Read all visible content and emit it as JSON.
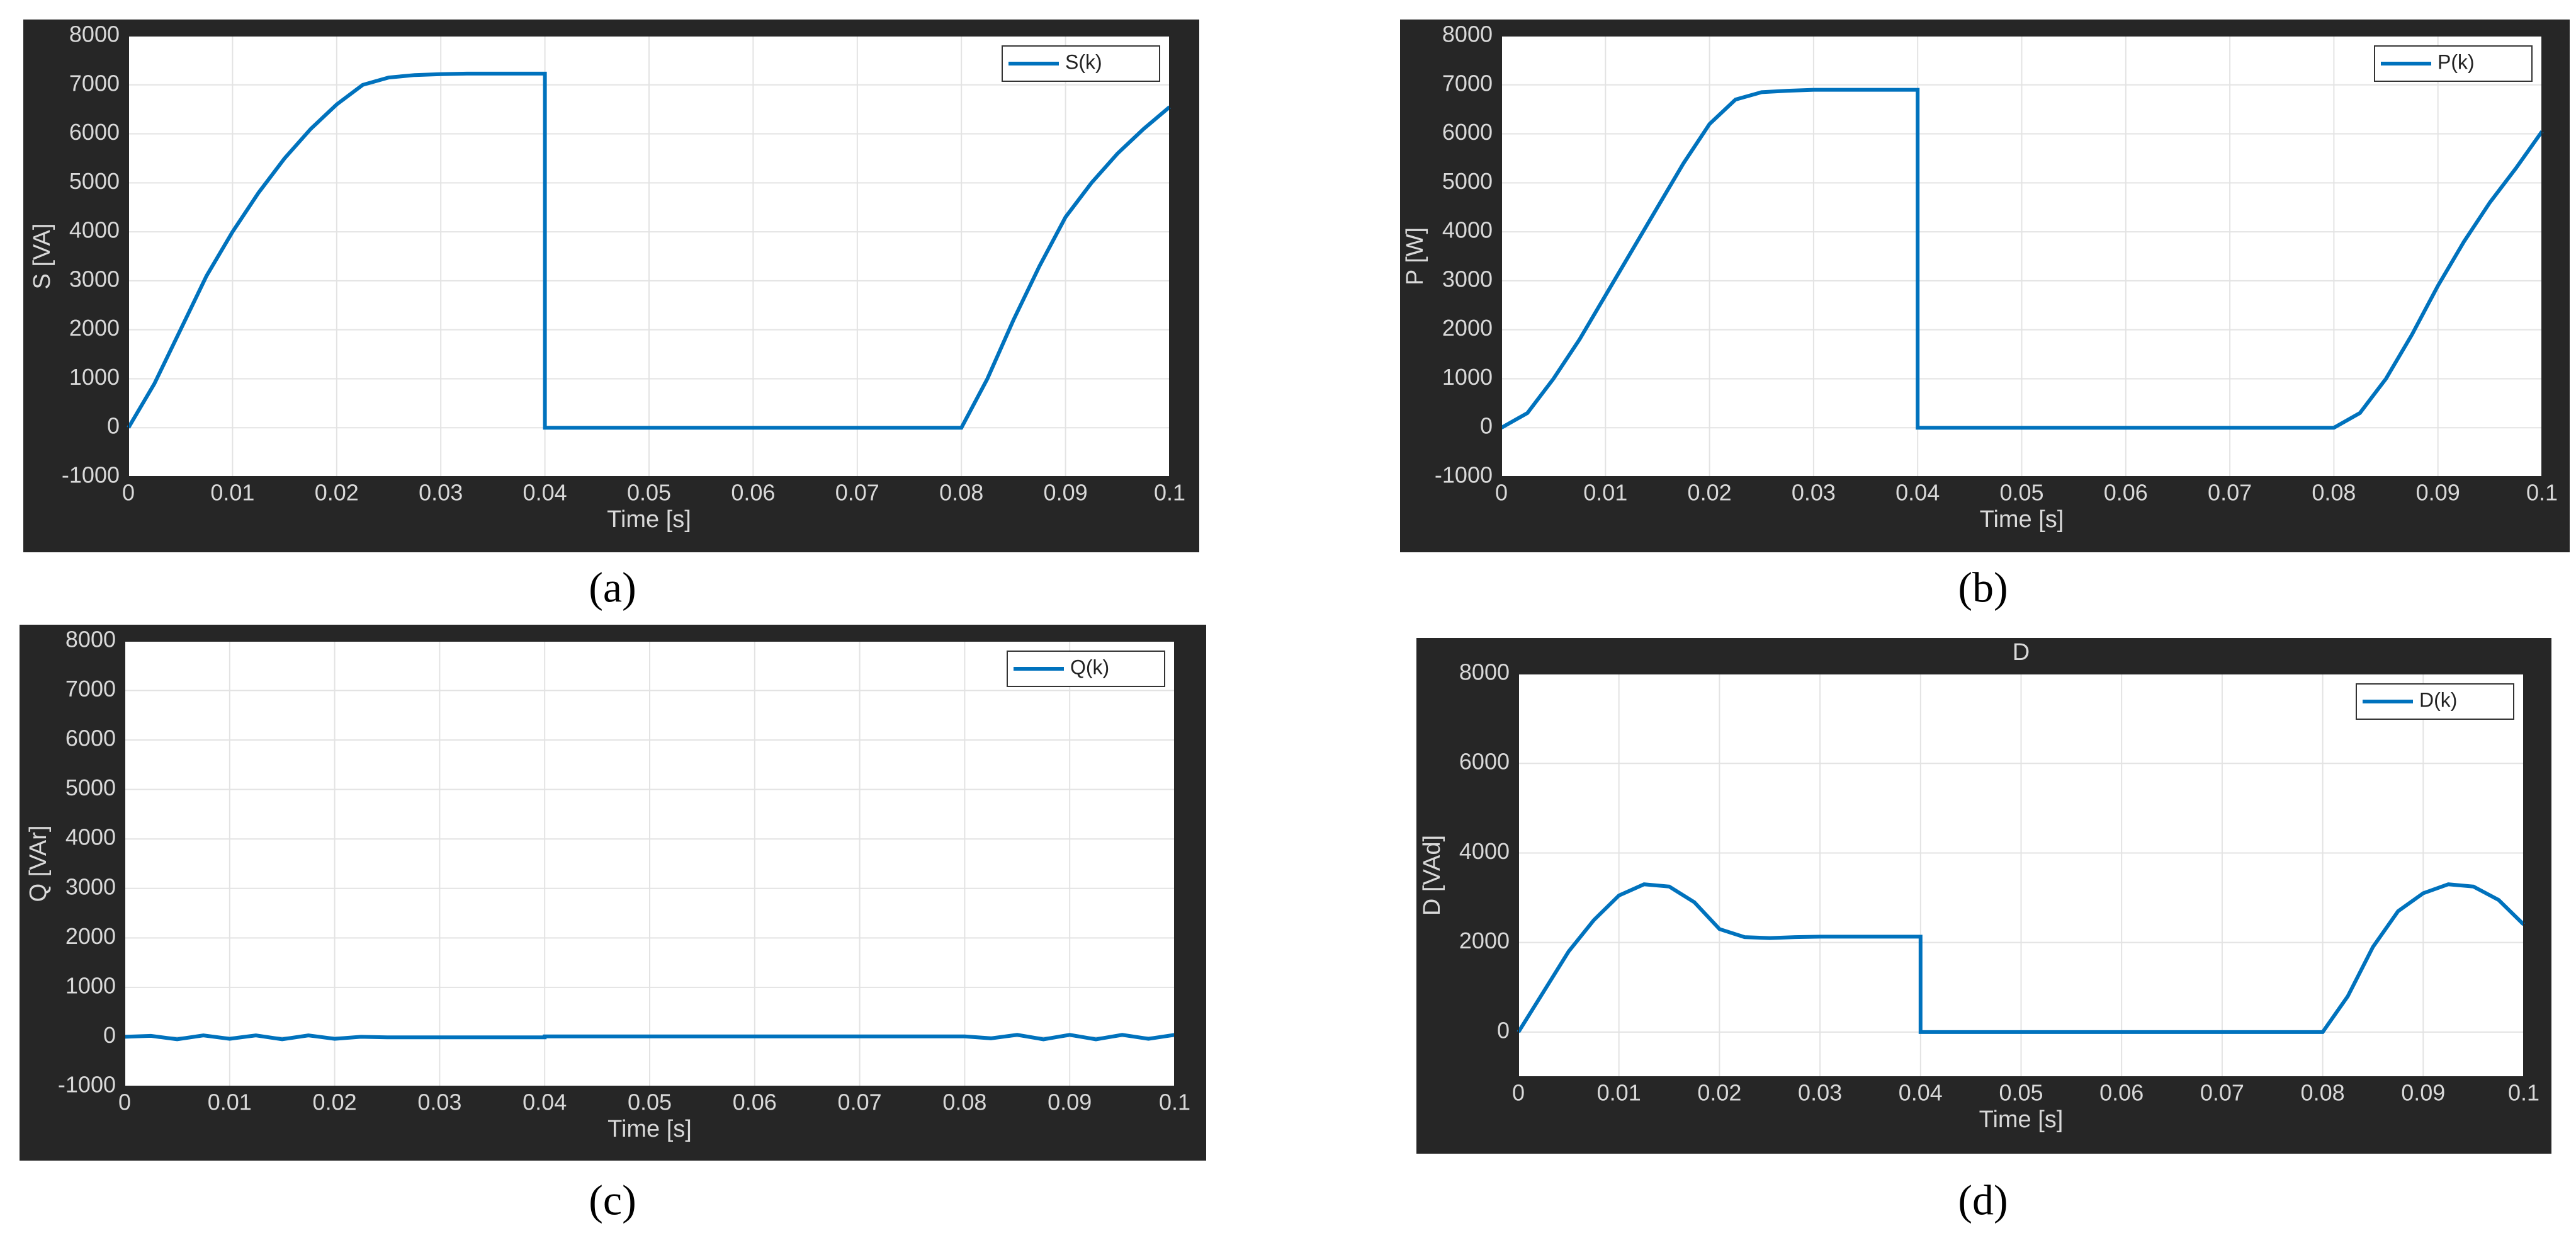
{
  "chart_data": [
    {
      "type": "line",
      "caption": "(a)",
      "xlabel": "Time [s]",
      "ylabel": "S [VA]",
      "legend": "upper right",
      "grid": true,
      "x": [
        0,
        0.0025,
        0.005,
        0.0075,
        0.01,
        0.0125,
        0.015,
        0.0175,
        0.02,
        0.0225,
        0.025,
        0.0275,
        0.03,
        0.0325,
        0.035,
        0.0375,
        0.04,
        0.04,
        0.0425,
        0.045,
        0.0475,
        0.05,
        0.0525,
        0.055,
        0.0575,
        0.06,
        0.0625,
        0.065,
        0.0675,
        0.07,
        0.0725,
        0.075,
        0.0775,
        0.08,
        0.0825,
        0.085,
        0.0875,
        0.09,
        0.0925,
        0.095,
        0.0975,
        0.1
      ],
      "series": [
        {
          "name": "S(k)",
          "color": "#0072bd",
          "values": [
            0,
            900,
            2000,
            3100,
            4000,
            4800,
            5500,
            6100,
            6600,
            7000,
            7150,
            7200,
            7220,
            7230,
            7230,
            7230,
            7230,
            0,
            0,
            0,
            0,
            0,
            0,
            0,
            0,
            0,
            0,
            0,
            0,
            0,
            0,
            0,
            0,
            0,
            1000,
            2200,
            3300,
            4300,
            5000,
            5600,
            6100,
            6550
          ]
        }
      ],
      "xlim": [
        0,
        0.1
      ],
      "xticks": [
        0,
        0.01,
        0.02,
        0.03,
        0.04,
        0.05,
        0.06,
        0.07,
        0.08,
        0.09,
        0.1
      ],
      "ylim": [
        -1000,
        8000
      ],
      "yticks": [
        -1000,
        0,
        1000,
        2000,
        3000,
        4000,
        5000,
        6000,
        7000,
        8000
      ]
    },
    {
      "type": "line",
      "caption": "(b)",
      "xlabel": "Time [s]",
      "ylabel": "P [W]",
      "legend": "upper right",
      "grid": true,
      "x": [
        0,
        0.0025,
        0.005,
        0.0075,
        0.01,
        0.0125,
        0.015,
        0.0175,
        0.02,
        0.0225,
        0.025,
        0.0275,
        0.03,
        0.0325,
        0.035,
        0.0375,
        0.04,
        0.04,
        0.0425,
        0.045,
        0.0475,
        0.05,
        0.0525,
        0.055,
        0.0575,
        0.06,
        0.0625,
        0.065,
        0.0675,
        0.07,
        0.0725,
        0.075,
        0.0775,
        0.08,
        0.0825,
        0.085,
        0.0875,
        0.09,
        0.0925,
        0.095,
        0.0975,
        0.1
      ],
      "series": [
        {
          "name": "P(k)",
          "color": "#0072bd",
          "values": [
            0,
            300,
            1000,
            1800,
            2700,
            3600,
            4500,
            5400,
            6200,
            6700,
            6850,
            6880,
            6900,
            6900,
            6900,
            6900,
            6900,
            0,
            0,
            0,
            0,
            0,
            0,
            0,
            0,
            0,
            0,
            0,
            0,
            0,
            0,
            0,
            0,
            0,
            300,
            1000,
            1900,
            2900,
            3800,
            4600,
            5300,
            6050
          ]
        }
      ],
      "xlim": [
        0,
        0.1
      ],
      "xticks": [
        0,
        0.01,
        0.02,
        0.03,
        0.04,
        0.05,
        0.06,
        0.07,
        0.08,
        0.09,
        0.1
      ],
      "ylim": [
        -1000,
        8000
      ],
      "yticks": [
        -1000,
        0,
        1000,
        2000,
        3000,
        4000,
        5000,
        6000,
        7000,
        8000
      ]
    },
    {
      "type": "line",
      "caption": "(c)",
      "xlabel": "Time [s]",
      "ylabel": "Q [VAr]",
      "legend": "upper right",
      "grid": true,
      "x": [
        0,
        0.0025,
        0.005,
        0.0075,
        0.01,
        0.0125,
        0.015,
        0.0175,
        0.02,
        0.0225,
        0.025,
        0.0275,
        0.03,
        0.0325,
        0.035,
        0.0375,
        0.04,
        0.04,
        0.0425,
        0.045,
        0.0475,
        0.05,
        0.0525,
        0.055,
        0.0575,
        0.06,
        0.0625,
        0.065,
        0.0675,
        0.07,
        0.0725,
        0.075,
        0.0775,
        0.08,
        0.0825,
        0.085,
        0.0875,
        0.09,
        0.0925,
        0.095,
        0.0975,
        0.1
      ],
      "series": [
        {
          "name": "Q(k)",
          "color": "#0072bd",
          "values": [
            0,
            20,
            -50,
            30,
            -40,
            30,
            -50,
            30,
            -40,
            0,
            -10,
            -10,
            -10,
            -10,
            -10,
            -10,
            -10,
            10,
            10,
            10,
            10,
            10,
            10,
            10,
            10,
            10,
            10,
            10,
            10,
            10,
            10,
            10,
            10,
            10,
            -30,
            40,
            -50,
            40,
            -50,
            40,
            -40,
            40
          ]
        }
      ],
      "xlim": [
        0,
        0.1
      ],
      "xticks": [
        0,
        0.01,
        0.02,
        0.03,
        0.04,
        0.05,
        0.06,
        0.07,
        0.08,
        0.09,
        0.1
      ],
      "ylim": [
        -1000,
        8000
      ],
      "yticks": [
        -1000,
        0,
        1000,
        2000,
        3000,
        4000,
        5000,
        6000,
        7000,
        8000
      ]
    },
    {
      "type": "line",
      "caption": "(d)",
      "title": "D",
      "xlabel": "Time [s]",
      "ylabel": "D [VAd]",
      "legend": "upper right",
      "grid": true,
      "x": [
        0,
        0.0025,
        0.005,
        0.0075,
        0.01,
        0.0125,
        0.015,
        0.0175,
        0.02,
        0.0225,
        0.025,
        0.0275,
        0.03,
        0.0325,
        0.035,
        0.0375,
        0.04,
        0.04,
        0.0425,
        0.045,
        0.0475,
        0.05,
        0.0525,
        0.055,
        0.0575,
        0.06,
        0.0625,
        0.065,
        0.0675,
        0.07,
        0.0725,
        0.075,
        0.0775,
        0.08,
        0.0825,
        0.085,
        0.0875,
        0.09,
        0.0925,
        0.095,
        0.0975,
        0.1
      ],
      "series": [
        {
          "name": "D(k)",
          "color": "#0072bd",
          "values": [
            0,
            900,
            1800,
            2500,
            3050,
            3300,
            3250,
            2900,
            2300,
            2120,
            2100,
            2120,
            2130,
            2130,
            2130,
            2130,
            2130,
            0,
            0,
            0,
            0,
            0,
            0,
            0,
            0,
            0,
            0,
            0,
            0,
            0,
            0,
            0,
            0,
            0,
            800,
            1900,
            2700,
            3100,
            3300,
            3250,
            2950,
            2400
          ]
        }
      ],
      "xlim": [
        0,
        0.1
      ],
      "xticks": [
        0,
        0.01,
        0.02,
        0.03,
        0.04,
        0.05,
        0.06,
        0.07,
        0.08,
        0.09,
        0.1
      ],
      "ylim": [
        -1000,
        8000
      ],
      "yticks": [
        0,
        2000,
        4000,
        6000,
        8000
      ]
    }
  ]
}
